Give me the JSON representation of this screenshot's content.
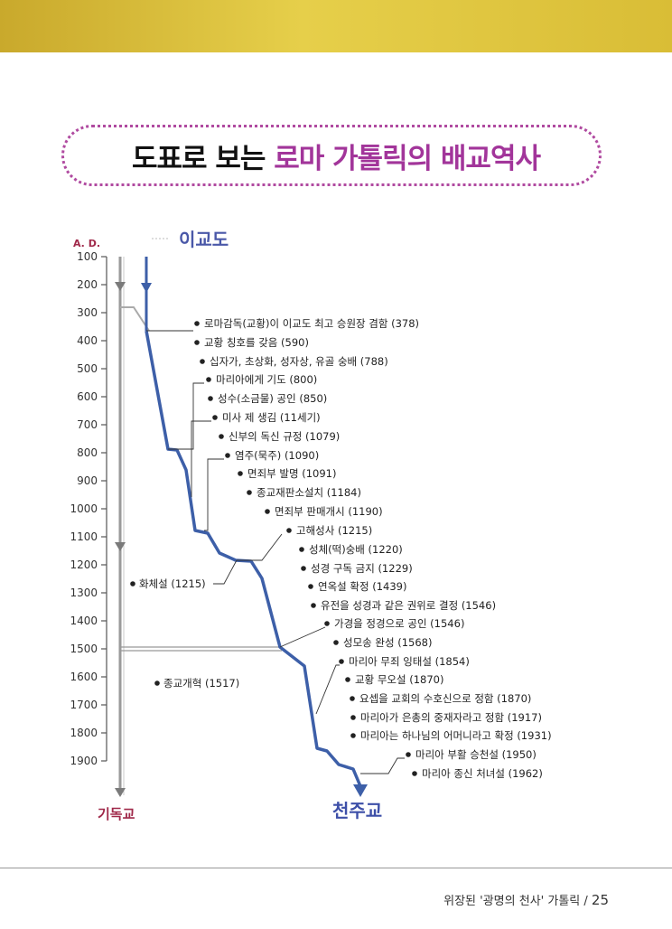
{
  "title": {
    "part1": "도표로 보는",
    "part2": "로마 가톨릭의 배교역사"
  },
  "chart_data": {
    "type": "timeline",
    "axis_label": "A. D.",
    "years": [
      "100",
      "200",
      "300",
      "400",
      "500",
      "600",
      "700",
      "800",
      "900",
      "1000",
      "1100",
      "1200",
      "1300",
      "1400",
      "1500",
      "1600",
      "1700",
      "1800",
      "1900"
    ],
    "branches": {
      "pagan": "이교도",
      "protestant": "기독교",
      "catholic": "천주교"
    },
    "events": [
      {
        "text": "로마감독(교황)이 이교도 최고 승원장 겸함 (378)"
      },
      {
        "text": "교황 칭호를 갖음 (590)"
      },
      {
        "text": "십자가, 초상화, 성자상, 유골 숭배 (788)"
      },
      {
        "text": "마리아에게 기도 (800)"
      },
      {
        "text": "성수(소금물) 공인 (850)"
      },
      {
        "text": "미사 제 생김 (11세기)"
      },
      {
        "text": "신부의 독신 규정 (1079)"
      },
      {
        "text": "염주(묵주) (1090)"
      },
      {
        "text": "면죄부 발명 (1091)"
      },
      {
        "text": "종교재판소설치 (1184)"
      },
      {
        "text": "면죄부 판매개시 (1190)"
      },
      {
        "text": "고해성사 (1215)"
      },
      {
        "text": "성체(떡)숭배 (1220)"
      },
      {
        "text": "성경 구독 금지 (1229)"
      },
      {
        "text": "연옥설 확정 (1439)"
      },
      {
        "text": "유전을 성경과 같은 권위로 결정 (1546)"
      },
      {
        "text": "가경을 정경으로 공인 (1546)"
      },
      {
        "text": "성모송 완성 (1568)"
      },
      {
        "text": "마리아 무죄 잉태설 (1854)"
      },
      {
        "text": "교황 무오설 (1870)"
      },
      {
        "text": "요셉을 교회의 수호신으로 정함 (1870)"
      },
      {
        "text": "마리아가 은총의 중재자라고 정함 (1917)"
      },
      {
        "text": "마리아는 하나님의 어머니라고 확정 (1931)"
      },
      {
        "text": "마리아 부활 승천설 (1950)"
      },
      {
        "text": "마리아 종신 처녀설 (1962)"
      }
    ],
    "side_notes": [
      {
        "text": "화체설 (1215)"
      },
      {
        "text": "종교개혁 (1517)"
      }
    ]
  },
  "footer": {
    "text": "위장된 '광명의 천사' 가톨릭 /",
    "page": "25"
  },
  "colors": {
    "catholic_line": "#3d5fa8",
    "protestant_line": "#888888",
    "axis_label": "#a0294a",
    "title_accent": "#a2359a"
  }
}
